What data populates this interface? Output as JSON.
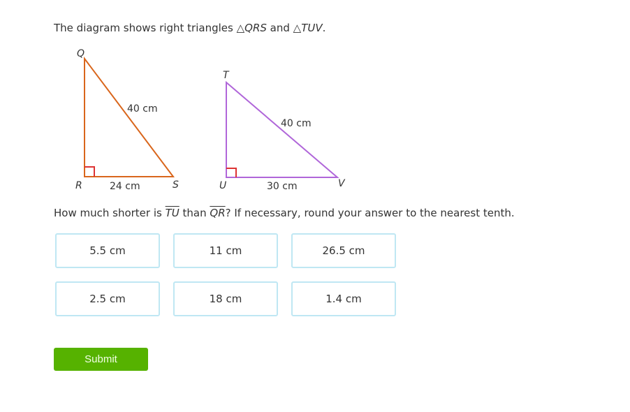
{
  "prompt": {
    "intro": "The diagram shows right triangles ",
    "tri1": "QRS",
    "and": " and ",
    "tri2": "TUV",
    "end": "."
  },
  "diagram": {
    "triangle_qrs": {
      "color": "#d9661c",
      "vertices": [
        "Q",
        "R",
        "S"
      ],
      "hyp": "40 cm",
      "base": "24 cm"
    },
    "triangle_tuv": {
      "color": "#b066d9",
      "vertices": [
        "T",
        "U",
        "V"
      ],
      "hyp": "40 cm",
      "base": "30 cm"
    },
    "right_angle_color": "#d33"
  },
  "question": {
    "a": "How much shorter is ",
    "seg1": "TU",
    "b": " than ",
    "seg2": "QR",
    "c": "? If necessary, round your answer to the nearest tenth."
  },
  "choices": [
    "5.5 cm",
    "11 cm",
    "26.5 cm",
    "2.5 cm",
    "18 cm",
    "1.4 cm"
  ],
  "submit_label": "Submit"
}
